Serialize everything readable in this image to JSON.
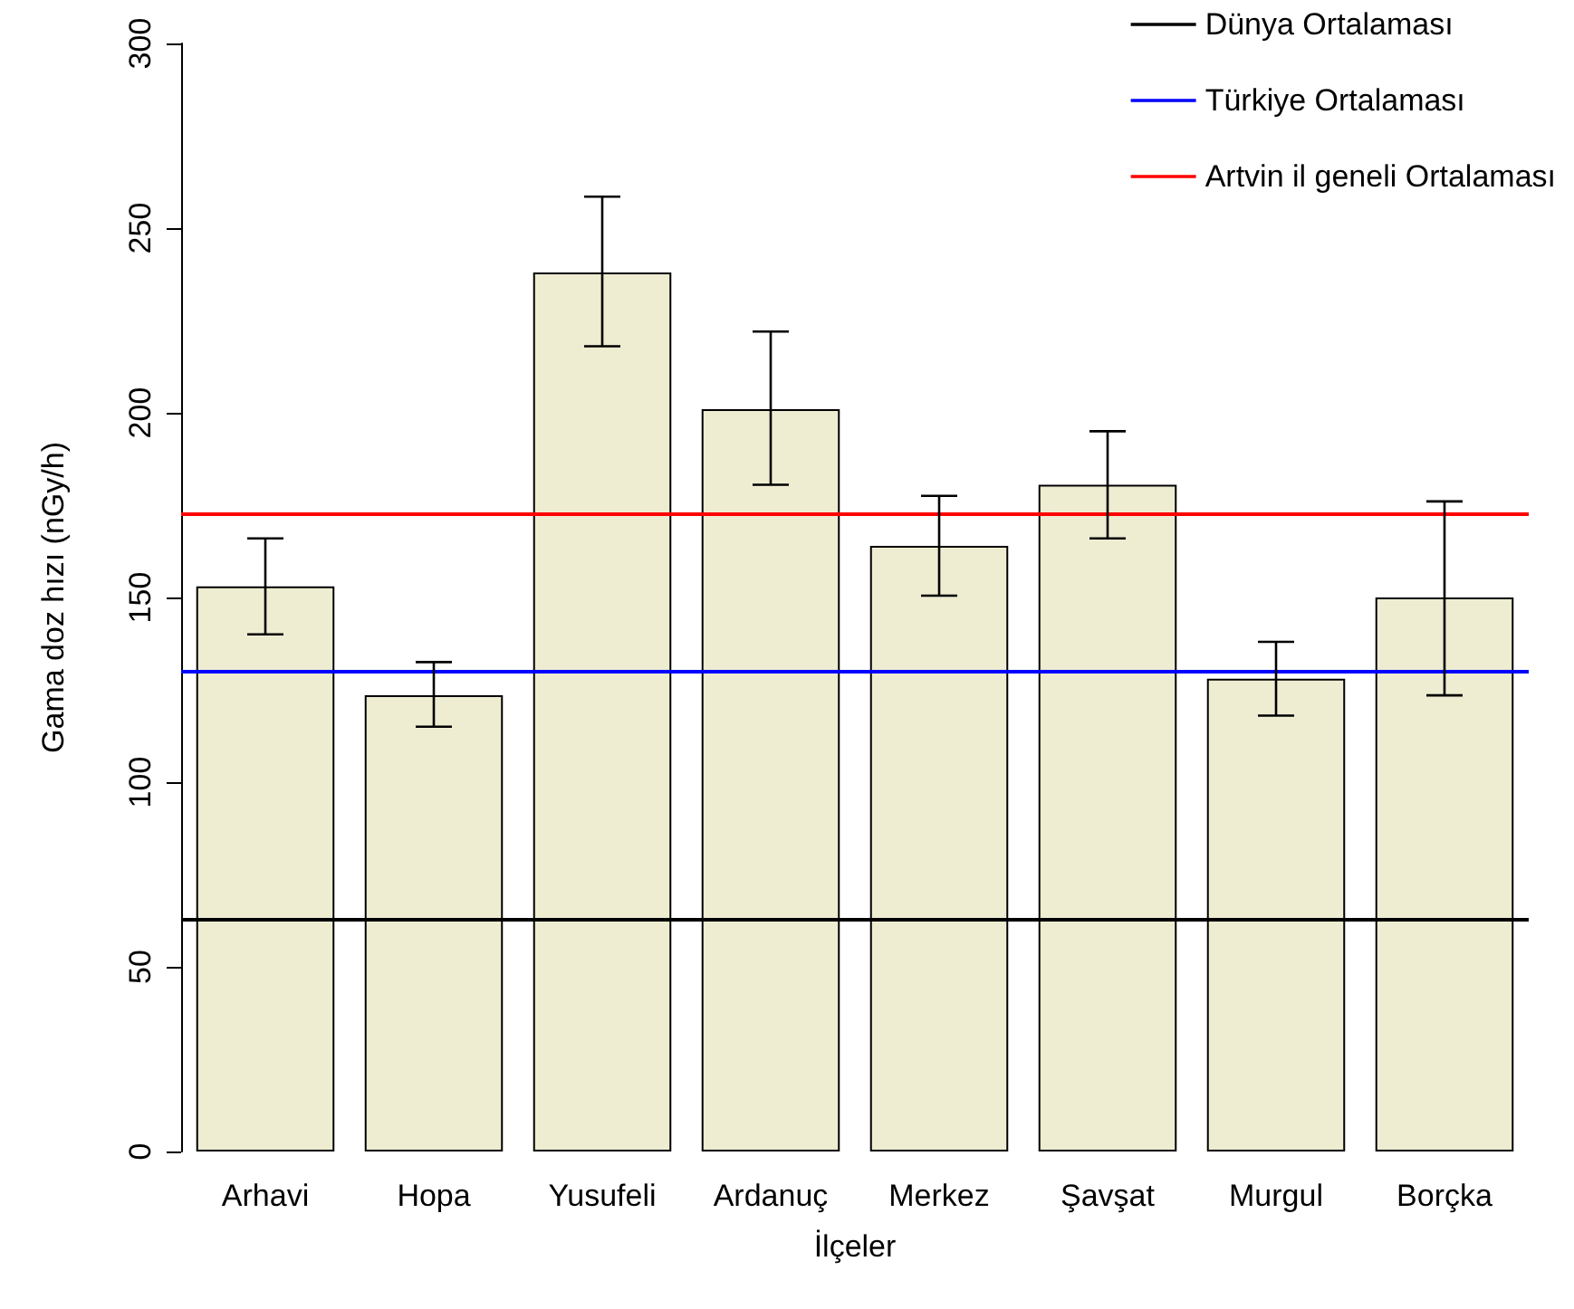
{
  "chart_data": {
    "type": "bar",
    "xlabel": "İlçeler",
    "ylabel": "Gama doz hızı (nGy/h)",
    "categories": [
      "Arhavi",
      "Hopa",
      "Yusufeli",
      "Ardanuç",
      "Merkez",
      "Şavşat",
      "Murgul",
      "Borçka"
    ],
    "values": [
      153,
      123.5,
      238,
      201,
      164,
      180.5,
      128,
      150
    ],
    "errors": [
      [
        140,
        166
      ],
      [
        115,
        132.5
      ],
      [
        218,
        258.5
      ],
      [
        180.5,
        222
      ],
      [
        150.5,
        177.5
      ],
      [
        166,
        195
      ],
      [
        118,
        138
      ],
      [
        123.5,
        176
      ]
    ],
    "color": "#eeecd1",
    "ylim": [
      0,
      300
    ],
    "yticks": [
      0,
      50,
      100,
      150,
      200,
      250,
      300
    ],
    "grid": false,
    "legend": "top right",
    "ref_lines": [
      {
        "axis": "y",
        "value": 63,
        "label": "Dünya Ortalaması",
        "color": "#000000"
      },
      {
        "axis": "y",
        "value": 130,
        "label": "Türkiye Ortalaması",
        "color": "#0000ff"
      },
      {
        "axis": "y",
        "value": 172.5,
        "label": "Artvin il geneli Ortalaması",
        "color": "#ff0000"
      }
    ]
  }
}
